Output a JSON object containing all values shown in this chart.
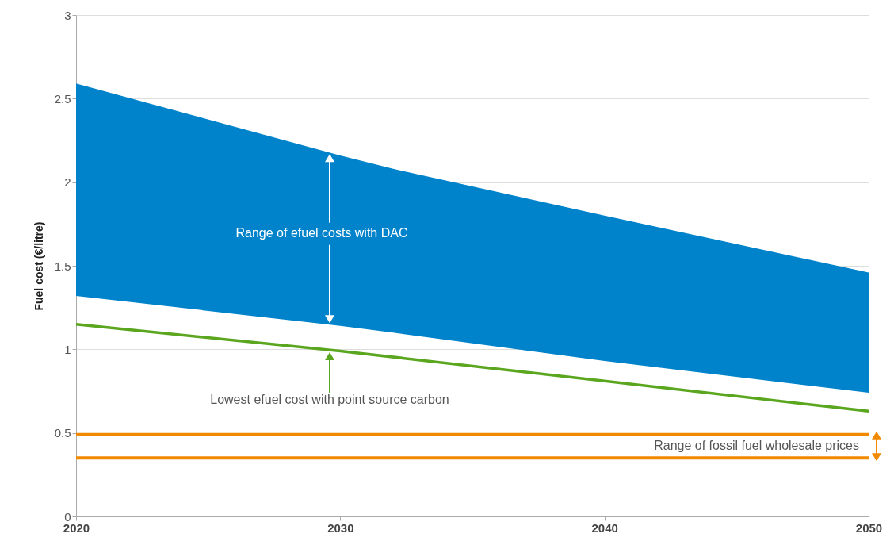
{
  "chart_data": {
    "type": "line",
    "ylabel": "Fuel cost (€/litre)",
    "series": [
      {
        "type": "area",
        "color": "#0083ca",
        "x": [
          2020,
          2030,
          2032,
          2040,
          2050
        ],
        "values": [
          null,
          null,
          null,
          null,
          null
        ],
        "upper": [
          2.59,
          2.16,
          2.08,
          1.8,
          1.46
        ],
        "lower": [
          1.32,
          1.14,
          1.1,
          0.93,
          0.74
        ]
      },
      {
        "color": "#5aa61e",
        "x": [
          2020,
          2030,
          2040,
          2050
        ],
        "values": [
          1.15,
          0.99,
          0.81,
          0.63
        ]
      }
    ],
    "ref_lines": [
      {
        "axis": "y",
        "value": 0.49,
        "color": "#f18a00"
      },
      {
        "axis": "y",
        "value": 0.35,
        "color": "#f18a00"
      }
    ],
    "annotations": [
      "Range of efuel costs with DAC",
      "Lowest efuel cost with point source carbon",
      "Range of fossil fuel wholesale prices"
    ],
    "xlim": [
      2020,
      2050
    ],
    "xticks": [
      2020,
      2030,
      2040,
      2050
    ],
    "ylim": [
      0,
      3
    ],
    "yticks": [
      0,
      0.5,
      1,
      1.5,
      2,
      2.5,
      3
    ],
    "grid": "y"
  }
}
